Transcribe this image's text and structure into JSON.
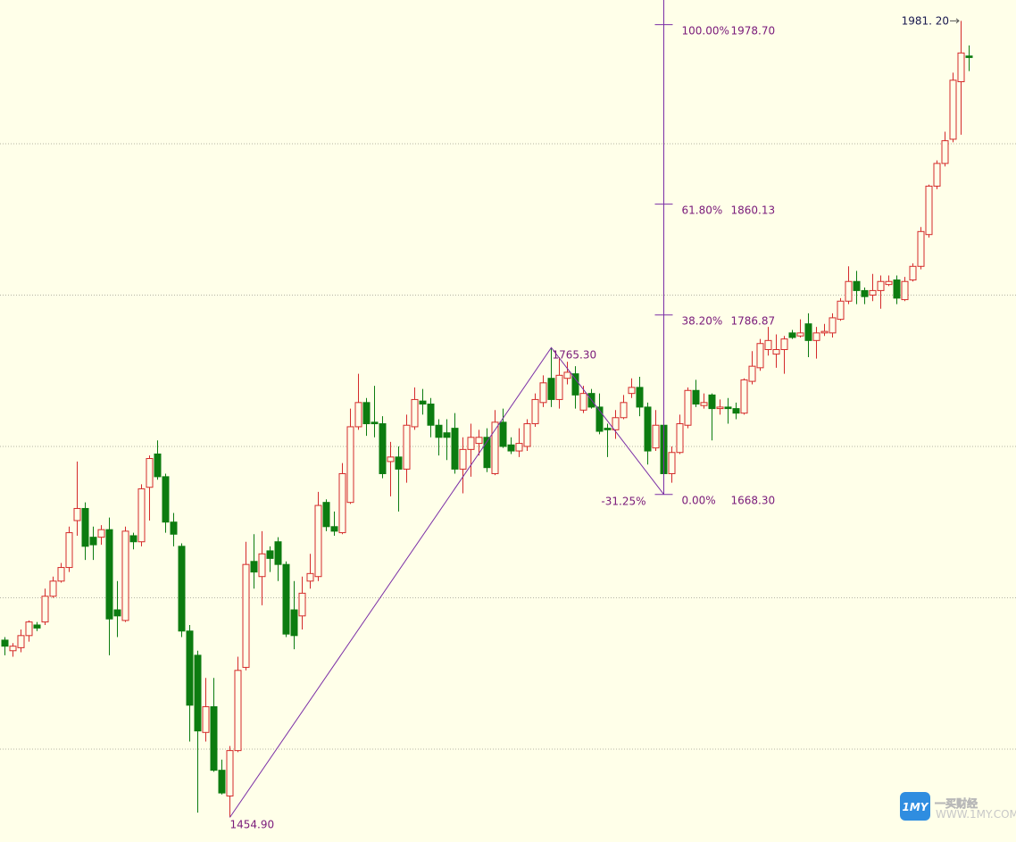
{
  "chart_data": {
    "type": "candlestick",
    "up_color": "#d42a2a",
    "down_color": "#0c7c10",
    "line_color": "#7b2fa6",
    "label_color": "#7a1a7a",
    "background": "#ffffe9",
    "grid": true,
    "ylim": [
      1438.6,
      1995.0
    ],
    "yticks": [
      1500,
      1600,
      1700,
      1800,
      1900
    ],
    "open": [
      1572,
      1565,
      1567,
      1575,
      1582,
      1584,
      1601,
      1611,
      1620,
      1651,
      1659,
      1640,
      1640,
      1645,
      1592,
      1585,
      1641,
      1637,
      1673,
      1695,
      1680,
      1650,
      1634,
      1578,
      1562,
      1511,
      1528,
      1486,
      1469,
      1499,
      1554,
      1624,
      1614,
      1631,
      1637,
      1622,
      1592,
      1588,
      1611,
      1614,
      1663,
      1647,
      1643,
      1663,
      1713,
      1729,
      1716,
      1715,
      1690,
      1693,
      1685,
      1713,
      1730,
      1728,
      1714,
      1709,
      1712,
      1685,
      1698,
      1702,
      1706,
      1682,
      1716,
      1701,
      1697,
      1700,
      1715,
      1729,
      1745,
      1731,
      1745,
      1748,
      1724,
      1735,
      1726,
      1712,
      1711,
      1719,
      1735,
      1739,
      1726,
      1699,
      1714,
      1682,
      1696,
      1714,
      1737,
      1727,
      1734,
      1725,
      1726,
      1725,
      1722,
      1743,
      1752,
      1764,
      1761,
      1764,
      1775,
      1773,
      1781,
      1770,
      1775,
      1775,
      1784,
      1796,
      1809,
      1803,
      1800,
      1803,
      1807,
      1810,
      1797,
      1810,
      1819,
      1840,
      1872,
      1887,
      1903,
      1941,
      1958
    ],
    "high": [
      1574,
      1570,
      1579,
      1585,
      1584,
      1606,
      1614,
      1623,
      1647,
      1690,
      1663,
      1647,
      1648,
      1653,
      1611,
      1647,
      1643,
      1675,
      1694,
      1704,
      1682,
      1656,
      1636,
      1582,
      1565,
      1547,
      1547,
      1493,
      1502,
      1561,
      1637,
      1642,
      1644,
      1634,
      1640,
      1624,
      1611,
      1614,
      1629,
      1670,
      1665,
      1657,
      1689,
      1725,
      1748,
      1732,
      1740,
      1720,
      1703,
      1700,
      1721,
      1739,
      1738,
      1732,
      1718,
      1718,
      1722,
      1706,
      1715,
      1711,
      1712,
      1724,
      1725,
      1706,
      1712,
      1718,
      1735,
      1747,
      1765.3,
      1759,
      1756,
      1753,
      1740,
      1738,
      1735,
      1715,
      1724,
      1734,
      1745,
      1746,
      1729,
      1724,
      1722,
      1700,
      1721,
      1739,
      1744,
      1735,
      1735,
      1731,
      1732,
      1729,
      1745,
      1763,
      1771,
      1779,
      1774,
      1773,
      1777,
      1784,
      1788,
      1779,
      1781,
      1788,
      1798,
      1819,
      1816,
      1805,
      1814,
      1813,
      1813,
      1813,
      1812,
      1821,
      1845,
      1873,
      1889,
      1908,
      1947,
      1981.2,
      1965
    ],
    "low": [
      1562,
      1561,
      1564,
      1571,
      1578,
      1582,
      1600,
      1610,
      1617,
      1641,
      1625,
      1625,
      1635,
      1562,
      1574,
      1584,
      1632,
      1634,
      1651,
      1678,
      1643,
      1634,
      1574,
      1505,
      1458,
      1505,
      1485,
      1470,
      1454.9,
      1498,
      1552,
      1606,
      1595,
      1617,
      1611,
      1574,
      1566,
      1579,
      1606,
      1611,
      1644,
      1641,
      1642,
      1662,
      1711,
      1707,
      1706,
      1679,
      1667,
      1657,
      1676,
      1711,
      1721,
      1706,
      1694,
      1691,
      1682,
      1669,
      1680,
      1694,
      1683,
      1681,
      1699,
      1695,
      1693,
      1697,
      1713,
      1726,
      1726,
      1725,
      1741,
      1725,
      1722,
      1725,
      1708,
      1693,
      1705,
      1718,
      1732,
      1720,
      1688,
      1697,
      1668.3,
      1676,
      1695,
      1712,
      1726,
      1725,
      1704,
      1721,
      1715,
      1718,
      1721,
      1741,
      1750,
      1760,
      1752,
      1748,
      1771,
      1772,
      1759,
      1758,
      1773,
      1772,
      1783,
      1794,
      1794,
      1794,
      1796,
      1791,
      1806,
      1794,
      1796,
      1809,
      1817,
      1838,
      1870,
      1885,
      1901,
      1906,
      1948
    ],
    "close": [
      1568,
      1568,
      1575,
      1584,
      1580,
      1601,
      1611,
      1620,
      1643,
      1659,
      1634,
      1635,
      1645,
      1586,
      1588,
      1644,
      1637,
      1672,
      1692,
      1680,
      1650,
      1642,
      1578,
      1529,
      1512,
      1528,
      1486,
      1471,
      1499,
      1552,
      1622,
      1617,
      1629,
      1626,
      1622,
      1576,
      1575,
      1603,
      1616,
      1661,
      1647,
      1644,
      1682,
      1713,
      1729,
      1715,
      1715,
      1682,
      1693,
      1685,
      1714,
      1731,
      1728,
      1714,
      1706,
      1706,
      1685,
      1698,
      1706,
      1706,
      1686,
      1716,
      1700,
      1697,
      1702,
      1715,
      1731,
      1742,
      1731,
      1747,
      1749,
      1734,
      1735,
      1726,
      1710,
      1711,
      1719,
      1729,
      1739,
      1726,
      1697,
      1714,
      1682,
      1696,
      1715,
      1737,
      1728,
      1729,
      1725,
      1726,
      1725,
      1722,
      1744,
      1753,
      1768,
      1770,
      1764,
      1771,
      1772,
      1775,
      1770,
      1775,
      1776,
      1785,
      1796,
      1809,
      1803,
      1799,
      1803,
      1809,
      1809,
      1798,
      1809,
      1819,
      1842,
      1872,
      1887,
      1902,
      1942,
      1960,
      1957
    ],
    "zigzag": [
      {
        "value": 1454.9,
        "label": "1454.90"
      },
      {
        "value": 1765.3,
        "label": "1765.30"
      },
      {
        "value": 1668.3,
        "label": "1668.30"
      }
    ],
    "fib_levels": [
      {
        "percent": {
          "value": 100,
          "label": "100.00%"
        },
        "price": {
          "value": 1978.7,
          "label": "1978.70"
        }
      },
      {
        "percent": {
          "value": 61.8,
          "label": "61.80%"
        },
        "price": {
          "value": 1860.13,
          "label": "1860.13"
        }
      },
      {
        "percent": {
          "value": 38.2,
          "label": "38.20%"
        },
        "price": {
          "value": 1786.87,
          "label": "1786.87"
        }
      },
      {
        "percent": {
          "value": 0,
          "label": "0.00%"
        },
        "price": {
          "value": 1668.3,
          "label": "1668.30"
        }
      }
    ],
    "fib_extension": {
      "value": -31.25,
      "label": "-31.25%"
    },
    "max_marker": {
      "value": 1981.2,
      "label": "1981. 20"
    }
  },
  "watermark": {
    "badge": "1MY",
    "name": "一买财经",
    "url": "WWW.1MY.COM"
  }
}
